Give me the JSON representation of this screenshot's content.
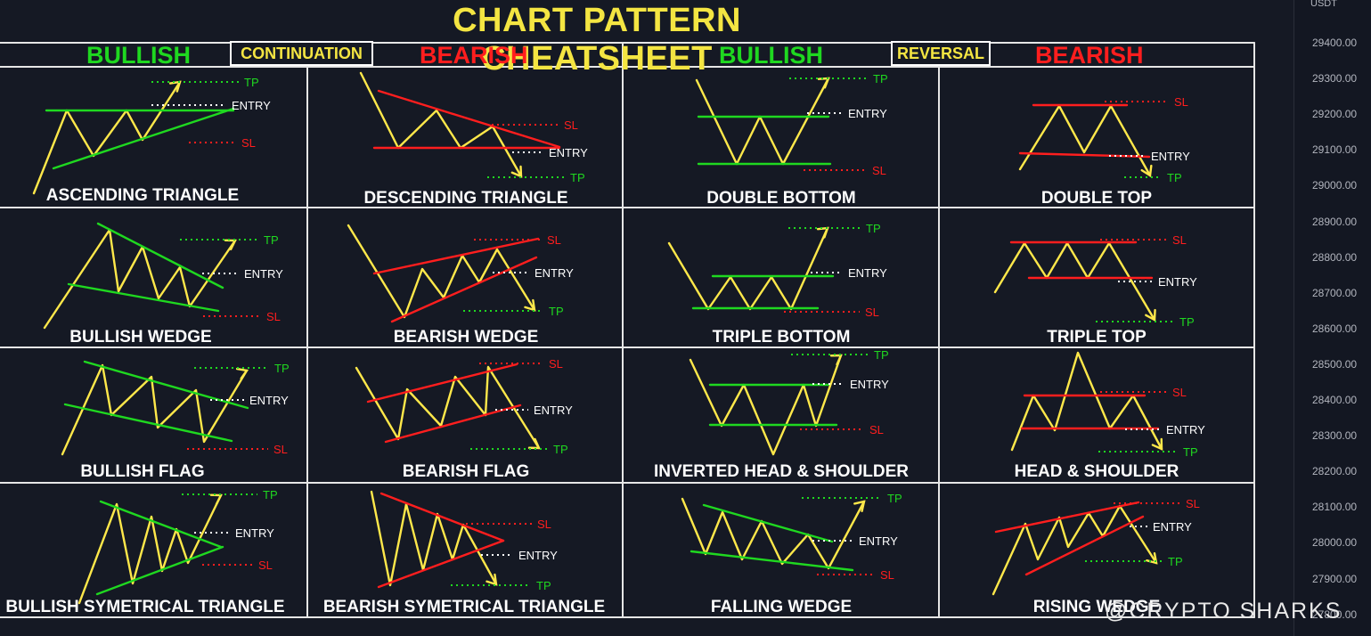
{
  "title": "CHART PATTERN CHEATSHEET",
  "headers": {
    "continuation": "CONTINUATION",
    "reversal": "REVERSAL",
    "bullish": "BULLISH",
    "bearish": "BEARISH"
  },
  "level_labels": {
    "tp": "TP",
    "sl": "SL",
    "entry": "ENTRY"
  },
  "colors": {
    "background": "#151924",
    "price": "#ffe84a",
    "bullish": "#1fd820",
    "bearish": "#ff1e1e",
    "title": "#f4e542",
    "grid": "#e6e6e6"
  },
  "patterns": [
    {
      "name": "ASCENDING TRIANGLE",
      "group": "continuation",
      "bias": "bullish"
    },
    {
      "name": "DESCENDING TRIANGLE",
      "group": "continuation",
      "bias": "bearish"
    },
    {
      "name": "DOUBLE BOTTOM",
      "group": "reversal",
      "bias": "bullish"
    },
    {
      "name": "DOUBLE TOP",
      "group": "reversal",
      "bias": "bearish"
    },
    {
      "name": "BULLISH WEDGE",
      "group": "continuation",
      "bias": "bullish"
    },
    {
      "name": "BEARISH WEDGE",
      "group": "continuation",
      "bias": "bearish"
    },
    {
      "name": "TRIPLE BOTTOM",
      "group": "reversal",
      "bias": "bullish"
    },
    {
      "name": "TRIPLE TOP",
      "group": "reversal",
      "bias": "bearish"
    },
    {
      "name": "BULLISH FLAG",
      "group": "continuation",
      "bias": "bullish"
    },
    {
      "name": "BEARISH FLAG",
      "group": "continuation",
      "bias": "bearish"
    },
    {
      "name": "INVERTED HEAD & SHOULDER",
      "group": "reversal",
      "bias": "bullish"
    },
    {
      "name": "HEAD & SHOULDER",
      "group": "reversal",
      "bias": "bearish"
    },
    {
      "name": "BULLISH SYMETRICAL TRIANGLE",
      "group": "continuation",
      "bias": "bullish"
    },
    {
      "name": "BEARISH SYMETRICAL TRIANGLE",
      "group": "continuation",
      "bias": "bearish"
    },
    {
      "name": "FALLING WEDGE",
      "group": "reversal",
      "bias": "bullish"
    },
    {
      "name": "RISING WEDGE",
      "group": "reversal",
      "bias": "bearish"
    }
  ],
  "price_axis": {
    "unit": "USDT",
    "ticks": [
      "29400.00",
      "29300.00",
      "29200.00",
      "29100.00",
      "29000.00",
      "28900.00",
      "28800.00",
      "28700.00",
      "28600.00",
      "28500.00",
      "28400.00",
      "28300.00",
      "28200.00",
      "28100.00",
      "28000.00",
      "27900.00",
      "27800.00"
    ]
  },
  "watermark": "@CRYPTO SHARKS"
}
